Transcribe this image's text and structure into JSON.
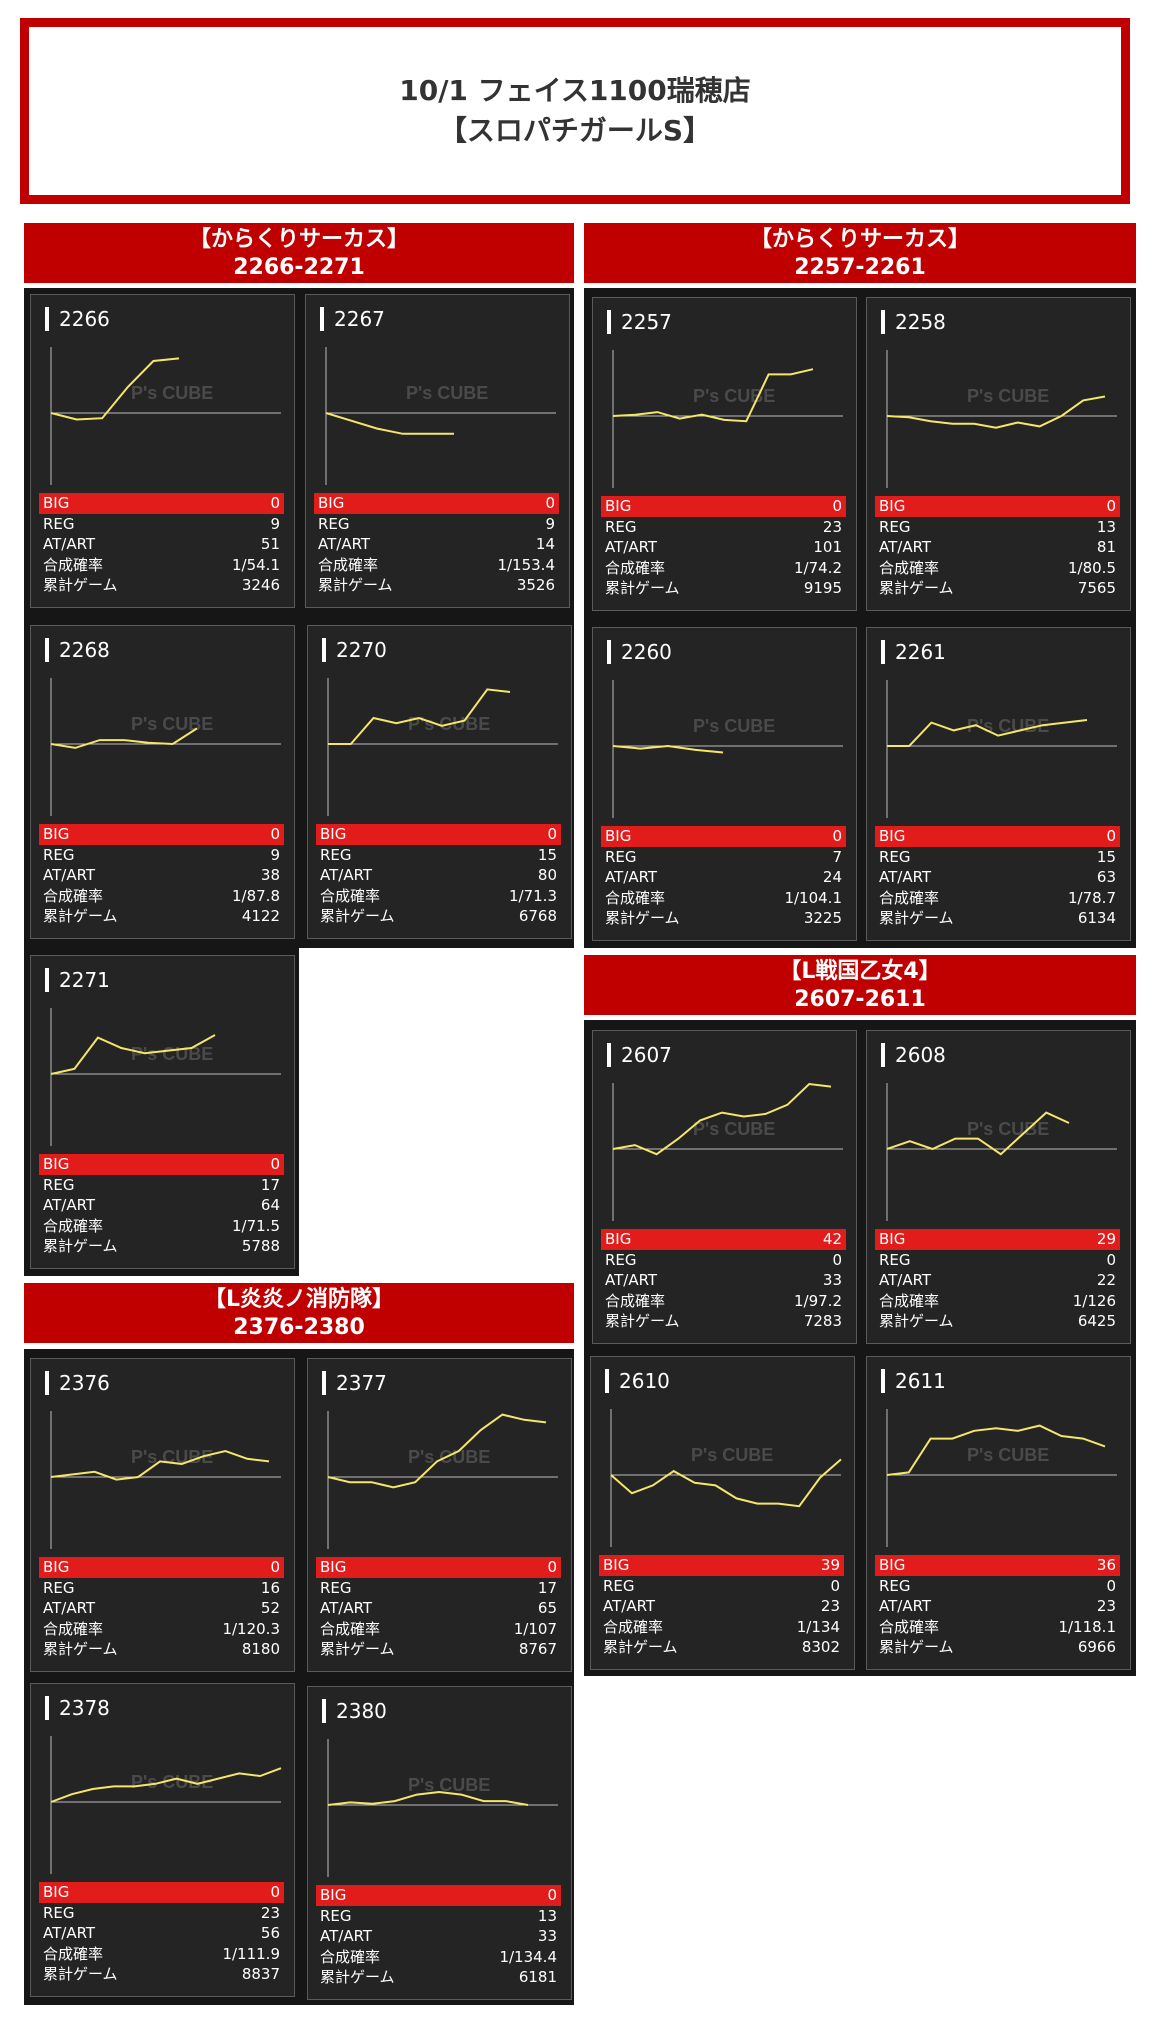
{
  "header": {
    "line1": "10/1 フェイス1100瑞穂店",
    "line2": "【スロパチガールS】"
  },
  "labels": {
    "big": "BIG",
    "reg": "REG",
    "at": "AT/ART",
    "prob": "合成確率",
    "games": "累計ゲーム"
  },
  "watermark": {
    "brand": "P's CUBE"
  },
  "groups": [
    {
      "name": "【からくりサーカス】",
      "range": "2266-2271"
    },
    {
      "name": "【からくりサーカス】",
      "range": "2257-2261"
    },
    {
      "name": "【L戦国乙女4】",
      "range": "2607-2611"
    },
    {
      "name": "【L炎炎ノ消防隊】",
      "range": "2376-2380"
    }
  ],
  "colors": {
    "accent": "#c00000",
    "big_bar": "#e21b1b",
    "line": "#f5e66a",
    "panel": "#242424"
  },
  "chart_data": [
    {
      "type": "line",
      "label": "2266",
      "values": [
        0,
        -5,
        -4,
        20,
        40,
        42
      ],
      "stats": {
        "big": "0",
        "reg": "9",
        "at": "51",
        "prob": "1/54.1",
        "games": "3246"
      }
    },
    {
      "type": "line",
      "label": "2267",
      "values": [
        0,
        -6,
        -12,
        -16,
        -16,
        -16
      ],
      "stats": {
        "big": "0",
        "reg": "9",
        "at": "14",
        "prob": "1/153.4",
        "games": "3526"
      }
    },
    {
      "type": "line",
      "label": "2257",
      "values": [
        0,
        1,
        3,
        -2,
        1,
        -3,
        -4,
        32,
        32,
        36
      ],
      "stats": {
        "big": "0",
        "reg": "23",
        "at": "101",
        "prob": "1/74.2",
        "games": "9195"
      }
    },
    {
      "type": "line",
      "label": "2258",
      "values": [
        0,
        -1,
        -4,
        -6,
        -6,
        -9,
        -5,
        -8,
        0,
        12,
        15
      ],
      "stats": {
        "big": "0",
        "reg": "13",
        "at": "81",
        "prob": "1/80.5",
        "games": "7565"
      }
    },
    {
      "type": "line",
      "label": "2268",
      "values": [
        0,
        -3,
        3,
        3,
        1,
        0,
        12
      ],
      "stats": {
        "big": "0",
        "reg": "9",
        "at": "38",
        "prob": "1/87.8",
        "games": "4122"
      }
    },
    {
      "type": "line",
      "label": "2270",
      "values": [
        0,
        0,
        20,
        16,
        20,
        14,
        18,
        42,
        40
      ],
      "stats": {
        "big": "0",
        "reg": "15",
        "at": "80",
        "prob": "1/71.3",
        "games": "6768"
      }
    },
    {
      "type": "line",
      "label": "2260",
      "values": [
        0,
        -2,
        0,
        -3,
        -5
      ],
      "stats": {
        "big": "0",
        "reg": "7",
        "at": "24",
        "prob": "1/104.1",
        "games": "3225"
      }
    },
    {
      "type": "line",
      "label": "2261",
      "values": [
        0,
        0,
        18,
        12,
        16,
        8,
        12,
        16,
        18,
        20
      ],
      "stats": {
        "big": "0",
        "reg": "15",
        "at": "63",
        "prob": "1/78.7",
        "games": "6134"
      }
    },
    {
      "type": "line",
      "label": "2271",
      "values": [
        0,
        4,
        28,
        20,
        16,
        18,
        20,
        30
      ],
      "stats": {
        "big": "0",
        "reg": "17",
        "at": "64",
        "prob": "1/71.5",
        "games": "5788"
      }
    },
    {
      "type": "line",
      "label": "2607",
      "values": [
        0,
        3,
        -4,
        8,
        22,
        28,
        25,
        27,
        34,
        50,
        48
      ],
      "stats": {
        "big": "42",
        "reg": "0",
        "at": "33",
        "prob": "1/97.2",
        "games": "7283"
      }
    },
    {
      "type": "line",
      "label": "2608",
      "values": [
        0,
        6,
        0,
        8,
        8,
        -4,
        12,
        28,
        20
      ],
      "stats": {
        "big": "29",
        "reg": "0",
        "at": "22",
        "prob": "1/126",
        "games": "6425"
      }
    },
    {
      "type": "line",
      "label": "2610",
      "values": [
        0,
        -14,
        -8,
        3,
        -6,
        -8,
        -18,
        -22,
        -22,
        -24,
        -2,
        12
      ],
      "stats": {
        "big": "39",
        "reg": "0",
        "at": "23",
        "prob": "1/134",
        "games": "8302"
      }
    },
    {
      "type": "line",
      "label": "2611",
      "values": [
        0,
        2,
        28,
        28,
        34,
        36,
        34,
        38,
        30,
        28,
        22
      ],
      "stats": {
        "big": "36",
        "reg": "0",
        "at": "23",
        "prob": "1/118.1",
        "games": "6966"
      }
    },
    {
      "type": "line",
      "label": "2376",
      "values": [
        0,
        2,
        4,
        -2,
        0,
        12,
        10,
        16,
        20,
        14,
        12
      ],
      "stats": {
        "big": "0",
        "reg": "16",
        "at": "52",
        "prob": "1/120.3",
        "games": "8180"
      }
    },
    {
      "type": "line",
      "label": "2377",
      "values": [
        0,
        -4,
        -4,
        -8,
        -4,
        12,
        20,
        36,
        48,
        44,
        42
      ],
      "stats": {
        "big": "0",
        "reg": "17",
        "at": "65",
        "prob": "1/107",
        "games": "8767"
      }
    },
    {
      "type": "line",
      "label": "2378",
      "values": [
        0,
        6,
        10,
        12,
        12,
        14,
        18,
        14,
        18,
        22,
        20,
        26
      ],
      "stats": {
        "big": "0",
        "reg": "23",
        "at": "56",
        "prob": "1/111.9",
        "games": "8837"
      }
    },
    {
      "type": "line",
      "label": "2380",
      "values": [
        0,
        2,
        1,
        3,
        8,
        10,
        8,
        3,
        3,
        0
      ],
      "stats": {
        "big": "0",
        "reg": "13",
        "at": "33",
        "prob": "1/134.4",
        "games": "6181"
      }
    }
  ]
}
